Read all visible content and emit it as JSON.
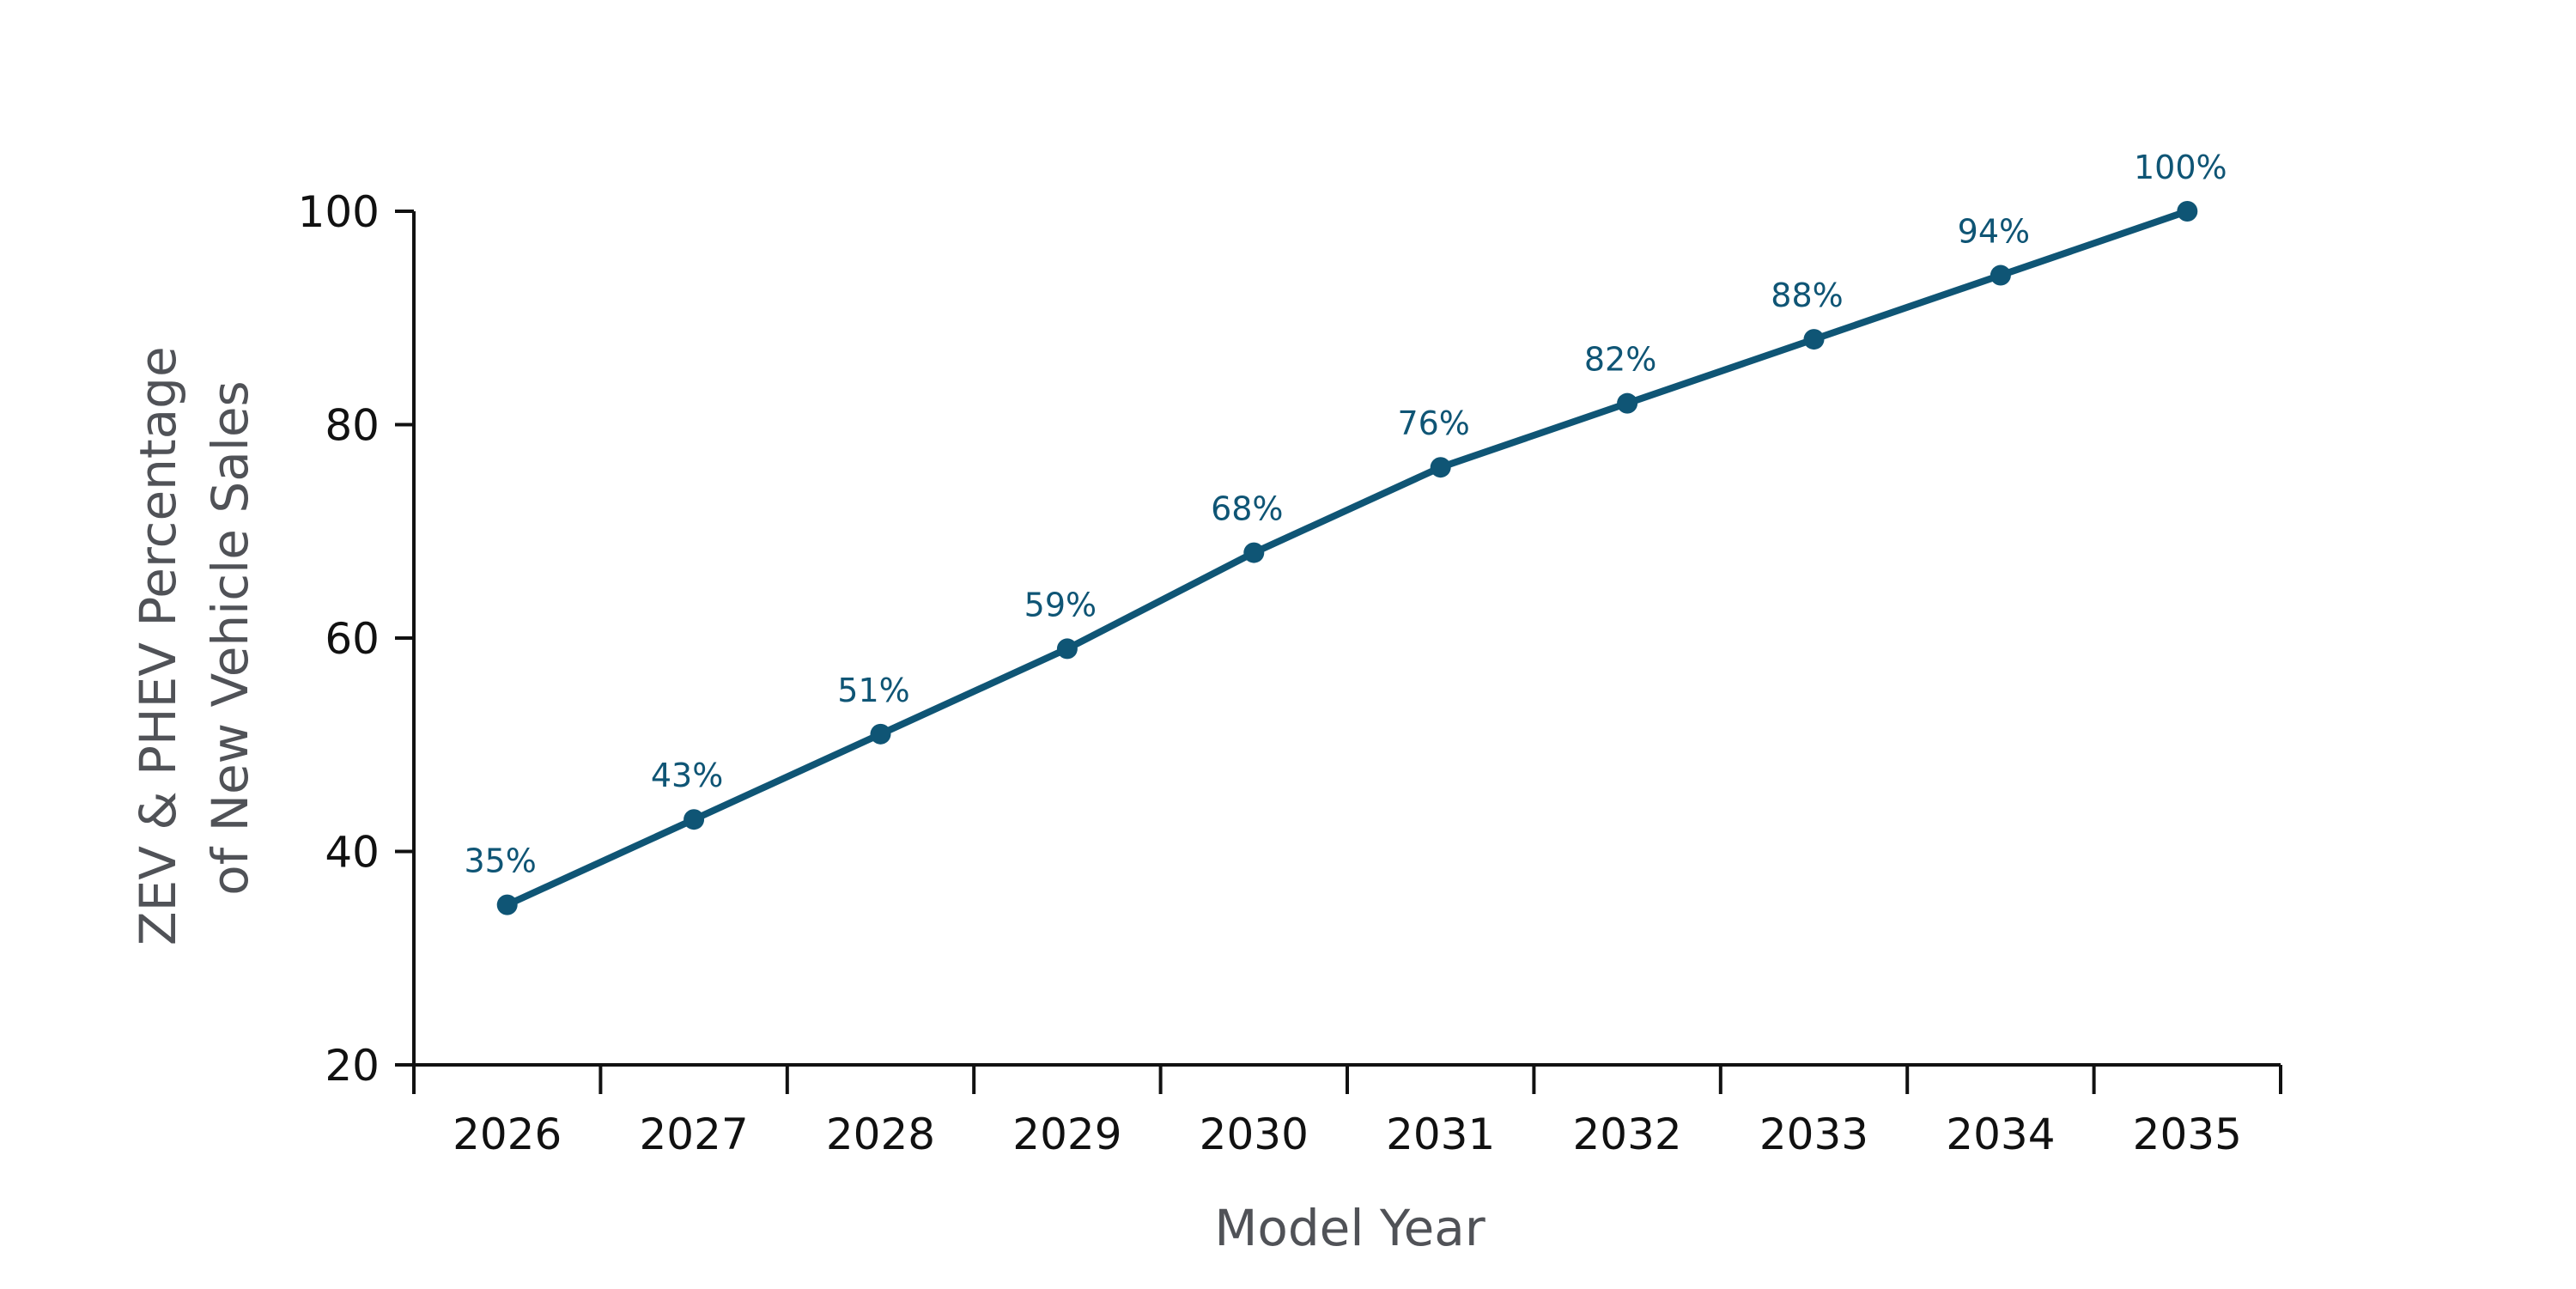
{
  "chart_data": {
    "type": "line",
    "x": [
      "2026",
      "2027",
      "2028",
      "2029",
      "2030",
      "2031",
      "2032",
      "2033",
      "2034",
      "2035"
    ],
    "series": [
      {
        "values": [
          35,
          43,
          51,
          59,
          68,
          76,
          82,
          88,
          94,
          100
        ],
        "labels": [
          "35%",
          "43%",
          "51%",
          "59%",
          "68%",
          "76%",
          "82%",
          "88%",
          "94%",
          "100%"
        ],
        "color": "#0f5575"
      }
    ],
    "xlabel": "Model Year",
    "ylabel_lines": [
      "ZEV & PHEV Percentage",
      "of New Vehicle Sales"
    ],
    "ylim": [
      20,
      100
    ],
    "yticks": [
      20,
      40,
      60,
      80,
      100
    ],
    "grid": false,
    "legend": "none"
  }
}
